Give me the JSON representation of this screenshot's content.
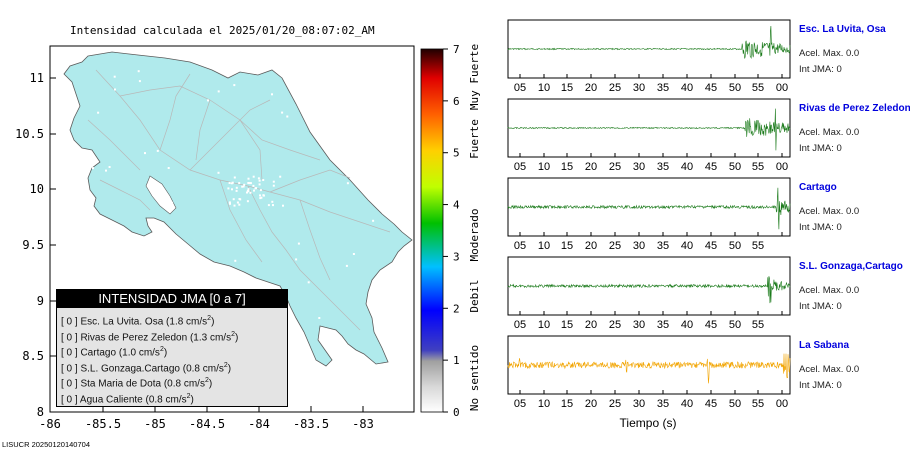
{
  "map": {
    "title": "Intensidad calculada el 2025/01/20_08:07:02_AM",
    "x_ticks": [
      "-86",
      "-85.5",
      "-85",
      "-84.5",
      "-84",
      "-83.5",
      "-83"
    ],
    "y_ticks": [
      "11",
      "10.5",
      "10",
      "9.5",
      "9",
      "8.5",
      "8"
    ],
    "footer": "LISUCR 20250120140704",
    "land_color": "#b0eaec",
    "road_color": "#b8b8b8"
  },
  "scale": {
    "ticks": [
      "7",
      "6",
      "5",
      "4",
      "3",
      "2",
      "1",
      "0"
    ],
    "categories": [
      "Muy Fuerte",
      "Fuerte",
      "Moderado",
      "Debil",
      "No sentido"
    ]
  },
  "legend": {
    "header": "INTENSIDAD JMA [0 a 7]",
    "unit_base": "cm/s",
    "unit_exp": "2",
    "rows": [
      {
        "jma": "[ 0 ]",
        "name": "Esc. La Uvita. Osa",
        "value": "(1.8"
      },
      {
        "jma": "[ 0 ]",
        "name": "Rivas de Perez Zeledon",
        "value": "(1.3"
      },
      {
        "jma": "[ 0 ]",
        "name": "Cartago",
        "value": "(1.0"
      },
      {
        "jma": "[ 0 ]",
        "name": "S.L. Gonzaga.Cartago",
        "value": "(0.8"
      },
      {
        "jma": "[ 0 ]",
        "name": "Sta Maria de Dota",
        "value": "(0.8"
      },
      {
        "jma": "[ 0 ]",
        "name": "Agua Caliente",
        "value": "(0.8"
      }
    ]
  },
  "seismograms": {
    "x_ticks": [
      "05",
      "10",
      "15",
      "20",
      "25",
      "30",
      "35",
      "40",
      "45",
      "50",
      "55",
      "00"
    ],
    "xlabel": "Tiempo (s)",
    "stations": [
      {
        "name": "Esc. La Uvita, Osa",
        "accel": "Acel. Max. 0.0",
        "jma": "Int JMA: 0",
        "color": "#1a7a1a"
      },
      {
        "name": "Rivas de Perez Zeledon",
        "accel": "Acel. Max. 0.0",
        "jma": "Int JMA: 0",
        "color": "#1a7a1a"
      },
      {
        "name": "Cartago",
        "accel": "Acel. Max. 0.0",
        "jma": "Int JMA: 0",
        "color": "#1a7a1a"
      },
      {
        "name": "S.L. Gonzaga,Cartago",
        "accel": "Acel. Max. 0.0",
        "jma": "Int JMA: 0",
        "color": "#1a7a1a"
      },
      {
        "name": "La Sabana",
        "accel": "Acel. Max. 0.0",
        "jma": "Int JMA: 0",
        "color": "#f2a400"
      }
    ]
  }
}
